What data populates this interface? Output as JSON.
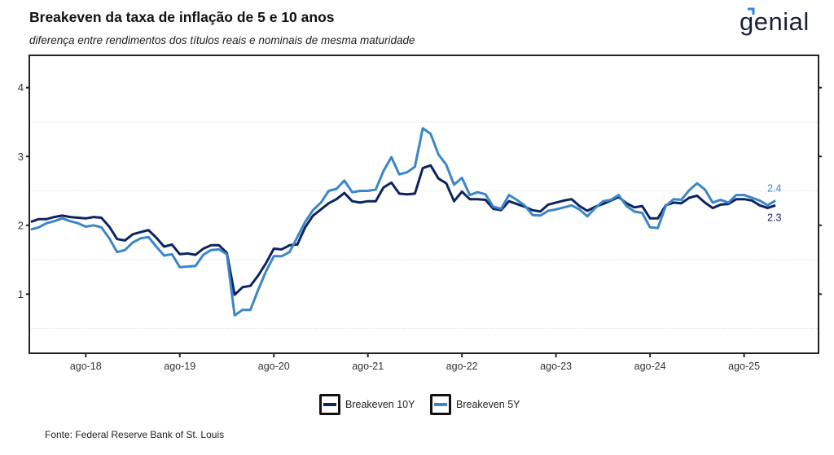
{
  "header": {
    "title": "Breakeven da taxa de inflação de 5 e 10 anos",
    "subtitle": "diferença entre rendimentos dos títulos reais e nominais de mesma maturidade",
    "logo_text": "genial",
    "logo_color": "#1b1f3b",
    "logo_accent_color": "#2e86de"
  },
  "footer": {
    "source": "Fonte: Federal Reserve Bank of St. Louis"
  },
  "chart_data": {
    "type": "line",
    "title": "Breakeven da taxa de inflação de 5 e 10 anos",
    "subtitle": "diferença entre rendimentos dos títulos reais e nominais de mesma maturidade",
    "xlabel": "",
    "ylabel": "",
    "x_start": "2018-01",
    "x_frequency": "monthly",
    "x_tick_labels": [
      "ago-18",
      "ago-19",
      "ago-20",
      "ago-21",
      "ago-22",
      "ago-23",
      "ago-24",
      "ago-25"
    ],
    "x_tick_months": [
      "2018-08",
      "2019-08",
      "2020-08",
      "2021-08",
      "2022-08",
      "2023-08",
      "2024-08",
      "2025-08"
    ],
    "x_range": [
      "2017-06",
      "2026-06"
    ],
    "y_ticks": [
      1,
      2,
      3,
      4
    ],
    "y_tick_labels": [
      "1",
      "2",
      "3",
      "4"
    ],
    "ylim": [
      0.14,
      4.47
    ],
    "grid": "horizontal minor (0.5, 1.5, 2.5, 3.5)",
    "legend_position": "bottom",
    "series": [
      {
        "name": "Breakeven 10Y",
        "color": "#0d2460",
        "end_label": "2.3",
        "values": [
          2.05,
          2.09,
          2.09,
          2.12,
          2.14,
          2.12,
          2.11,
          2.1,
          2.12,
          2.11,
          1.98,
          1.8,
          1.78,
          1.87,
          1.9,
          1.93,
          1.82,
          1.69,
          1.72,
          1.58,
          1.59,
          1.57,
          1.66,
          1.71,
          1.71,
          1.6,
          0.99,
          1.1,
          1.12,
          1.27,
          1.45,
          1.66,
          1.65,
          1.71,
          1.72,
          1.97,
          2.14,
          2.23,
          2.32,
          2.38,
          2.47,
          2.35,
          2.33,
          2.35,
          2.35,
          2.55,
          2.62,
          2.46,
          2.45,
          2.46,
          2.83,
          2.87,
          2.68,
          2.61,
          2.35,
          2.49,
          2.38,
          2.38,
          2.37,
          2.24,
          2.22,
          2.35,
          2.31,
          2.27,
          2.22,
          2.2,
          2.3,
          2.33,
          2.36,
          2.38,
          2.28,
          2.21,
          2.27,
          2.31,
          2.36,
          2.41,
          2.32,
          2.26,
          2.28,
          2.1,
          2.1,
          2.29,
          2.33,
          2.32,
          2.4,
          2.43,
          2.33,
          2.25,
          2.3,
          2.31,
          2.38,
          2.38,
          2.36,
          2.29,
          2.25,
          2.29
        ]
      },
      {
        "name": "Breakeven 5Y",
        "color": "#3b86c8",
        "end_label": "2.4",
        "values": [
          1.94,
          1.97,
          2.03,
          2.06,
          2.1,
          2.06,
          2.03,
          1.98,
          2.0,
          1.97,
          1.81,
          1.61,
          1.64,
          1.75,
          1.81,
          1.83,
          1.69,
          1.56,
          1.58,
          1.39,
          1.4,
          1.41,
          1.57,
          1.64,
          1.65,
          1.58,
          0.69,
          0.77,
          0.77,
          1.06,
          1.33,
          1.55,
          1.55,
          1.61,
          1.83,
          2.05,
          2.22,
          2.33,
          2.5,
          2.53,
          2.65,
          2.48,
          2.5,
          2.5,
          2.52,
          2.79,
          2.99,
          2.74,
          2.77,
          2.85,
          3.41,
          3.33,
          3.03,
          2.88,
          2.59,
          2.69,
          2.44,
          2.48,
          2.45,
          2.27,
          2.24,
          2.44,
          2.37,
          2.29,
          2.15,
          2.14,
          2.21,
          2.23,
          2.26,
          2.29,
          2.23,
          2.13,
          2.25,
          2.35,
          2.37,
          2.44,
          2.28,
          2.2,
          2.18,
          1.97,
          1.96,
          2.28,
          2.38,
          2.37,
          2.51,
          2.61,
          2.52,
          2.33,
          2.37,
          2.33,
          2.44,
          2.44,
          2.4,
          2.36,
          2.29,
          2.36
        ]
      }
    ]
  },
  "legend": {
    "items": [
      {
        "label": "Breakeven 10Y",
        "color": "#0d2460"
      },
      {
        "label": "Breakeven 5Y",
        "color": "#3b86c8"
      }
    ]
  }
}
